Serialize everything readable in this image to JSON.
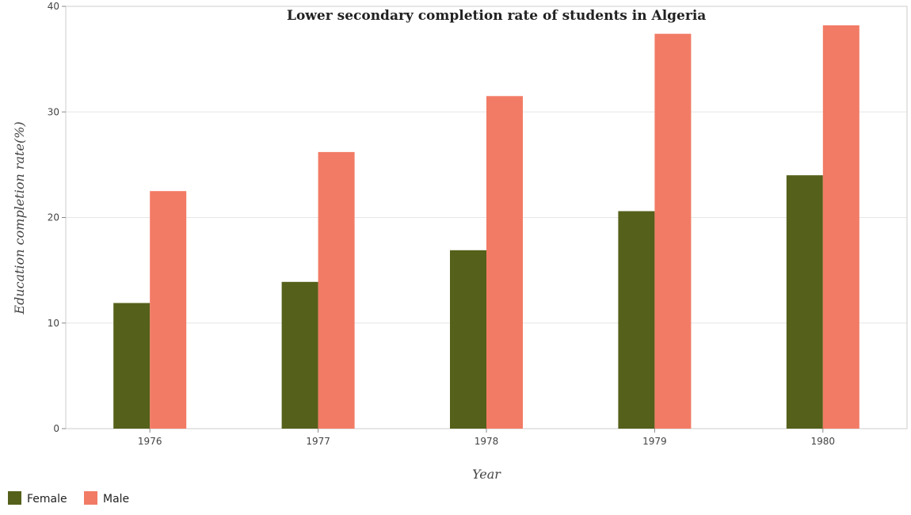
{
  "chart_data": {
    "type": "bar",
    "title": "Lower secondary completion rate of students in Algeria",
    "xlabel": "Year",
    "ylabel": "Education completion rate(%)",
    "categories": [
      "1976",
      "1977",
      "1978",
      "1979",
      "1980"
    ],
    "series": [
      {
        "name": "Female",
        "color": "#55601a",
        "values": [
          11.9,
          13.9,
          16.9,
          20.6,
          24.0
        ]
      },
      {
        "name": "Male",
        "color": "#f27b65",
        "values": [
          22.5,
          26.2,
          31.5,
          37.4,
          38.2
        ]
      }
    ],
    "ylim": [
      0,
      40
    ],
    "yticks": [
      "0",
      "10",
      "20",
      "30",
      "40"
    ],
    "grid": true,
    "legend_position": "bottom-left"
  }
}
